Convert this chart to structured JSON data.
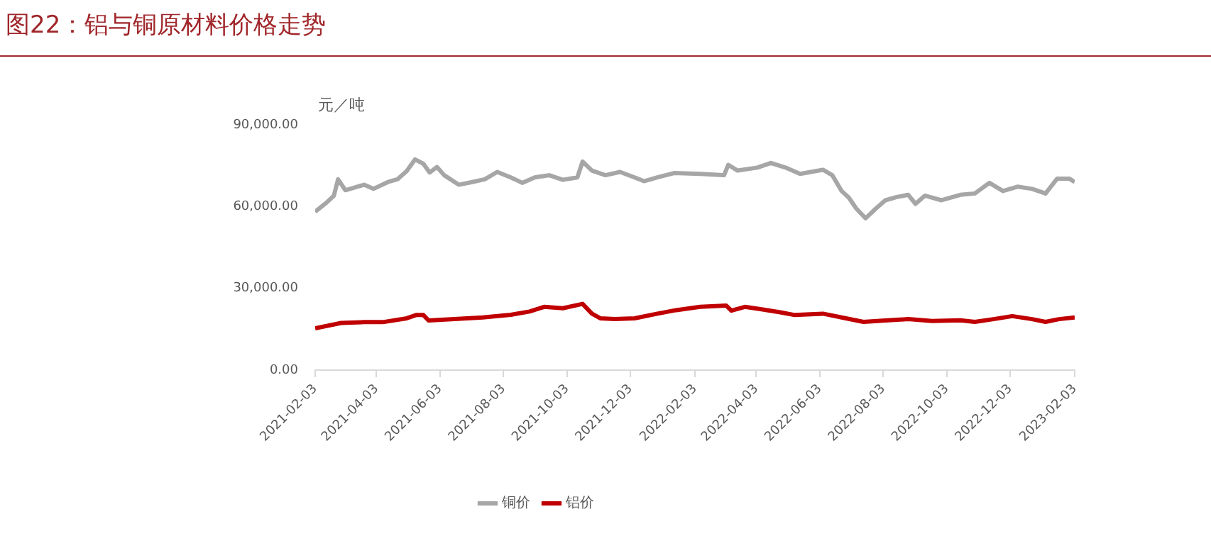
{
  "chart_data": {
    "type": "line",
    "title": "图22：铝与铜原材料价格走势",
    "annotations": [
      "元／吨"
    ],
    "xlim": [
      "2021-02-03",
      "2023-02-03"
    ],
    "xticks": [
      "2021-02-03",
      "2021-04-03",
      "2021-06-03",
      "2021-08-03",
      "2021-10-03",
      "2021-12-03",
      "2022-02-03",
      "2022-04-03",
      "2022-06-03",
      "2022-08-03",
      "2022-10-03",
      "2022-12-03",
      "2023-02-03"
    ],
    "ylim": [
      0,
      90000
    ],
    "yticks": [
      {
        "value": 0,
        "label": "0.00"
      },
      {
        "value": 30000,
        "label": "30,000.00"
      },
      {
        "value": 60000,
        "label": "60,000.00"
      },
      {
        "value": 90000,
        "label": "90,000.00"
      }
    ],
    "legend": "bottom",
    "marker": "none",
    "line_style": "solid",
    "series": [
      {
        "name": "铜价",
        "color": "#a6a6a6",
        "x": [
          "2021-02-03",
          "2021-02-14",
          "2021-02-21",
          "2021-02-25",
          "2021-03-04",
          "2021-03-22",
          "2021-03-31",
          "2021-04-14",
          "2021-04-23",
          "2021-05-02",
          "2021-05-10",
          "2021-05-18",
          "2021-05-24",
          "2021-05-31",
          "2021-06-07",
          "2021-06-21",
          "2021-07-04",
          "2021-07-16",
          "2021-07-28",
          "2021-08-10",
          "2021-08-21",
          "2021-09-02",
          "2021-09-16",
          "2021-09-29",
          "2021-10-13",
          "2021-10-18",
          "2021-10-27",
          "2021-11-09",
          "2021-11-23",
          "2021-12-07",
          "2021-12-16",
          "2021-12-29",
          "2022-01-14",
          "2022-02-08",
          "2022-03-03",
          "2022-03-07",
          "2022-03-16",
          "2022-04-04",
          "2022-04-17",
          "2022-05-01",
          "2022-05-15",
          "2022-06-06",
          "2022-06-15",
          "2022-06-24",
          "2022-07-01",
          "2022-07-08",
          "2022-07-17",
          "2022-07-27",
          "2022-08-05",
          "2022-08-16",
          "2022-08-27",
          "2022-09-03",
          "2022-09-12",
          "2022-09-28",
          "2022-10-16",
          "2022-10-30",
          "2022-11-13",
          "2022-11-26",
          "2022-12-10",
          "2022-12-24",
          "2023-01-06",
          "2023-01-17",
          "2023-01-29",
          "2023-02-03"
        ],
        "values": [
          58100,
          61500,
          64000,
          70000,
          66000,
          68000,
          66500,
          69000,
          70000,
          73000,
          77300,
          75700,
          72500,
          74500,
          71500,
          68000,
          69000,
          70000,
          72700,
          70700,
          68700,
          70700,
          71500,
          69800,
          70700,
          76500,
          73200,
          71500,
          72700,
          70700,
          69300,
          70700,
          72300,
          72000,
          71500,
          75300,
          73200,
          74300,
          76000,
          74300,
          72000,
          73500,
          71500,
          65700,
          63200,
          59300,
          55700,
          59300,
          62300,
          63500,
          64300,
          61000,
          64000,
          62300,
          64300,
          64800,
          68700,
          65700,
          67300,
          66500,
          64800,
          70200,
          70200,
          69000
        ]
      },
      {
        "name": "铝价",
        "color": "#c00000",
        "x": [
          "2021-02-03",
          "2021-02-28",
          "2021-03-22",
          "2021-04-09",
          "2021-05-02",
          "2021-05-11",
          "2021-05-18",
          "2021-05-23",
          "2021-06-17",
          "2021-07-14",
          "2021-08-10",
          "2021-08-28",
          "2021-09-11",
          "2021-09-29",
          "2021-10-18",
          "2021-10-27",
          "2021-11-04",
          "2021-11-18",
          "2021-12-07",
          "2021-12-29",
          "2022-01-16",
          "2022-02-08",
          "2022-03-05",
          "2022-03-10",
          "2022-03-23",
          "2022-04-08",
          "2022-04-26",
          "2022-05-10",
          "2022-06-06",
          "2022-06-24",
          "2022-07-15",
          "2022-08-05",
          "2022-08-27",
          "2022-09-19",
          "2022-10-16",
          "2022-10-30",
          "2022-11-17",
          "2022-12-05",
          "2022-12-24",
          "2023-01-06",
          "2023-01-19",
          "2023-02-03"
        ],
        "values": [
          15300,
          17300,
          17600,
          17600,
          19000,
          20200,
          20200,
          18200,
          18700,
          19300,
          20300,
          21500,
          23200,
          22700,
          24300,
          20700,
          19000,
          18700,
          19000,
          20700,
          22000,
          23200,
          23700,
          21800,
          23200,
          22300,
          21200,
          20200,
          20700,
          19300,
          17700,
          18200,
          18700,
          18000,
          18300,
          17700,
          18700,
          19800,
          18700,
          17700,
          18700,
          19300
        ]
      }
    ]
  }
}
